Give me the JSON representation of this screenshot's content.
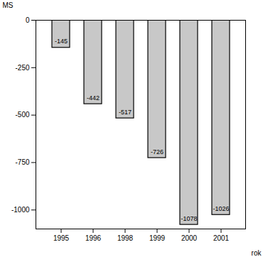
{
  "chart_data": {
    "type": "bar",
    "categories": [
      "1995",
      "1996",
      "1998",
      "1999",
      "2000",
      "2001"
    ],
    "values": [
      -145,
      -442,
      -517,
      -726,
      -1078,
      -1026
    ],
    "color": "#c8c8c8",
    "xlabel": "rok",
    "ylabel": "MS",
    "ylim": [
      -1100,
      0
    ],
    "yticks": [
      0,
      -250,
      -500,
      -750,
      -1000
    ],
    "data_labels": true,
    "grid": false
  }
}
